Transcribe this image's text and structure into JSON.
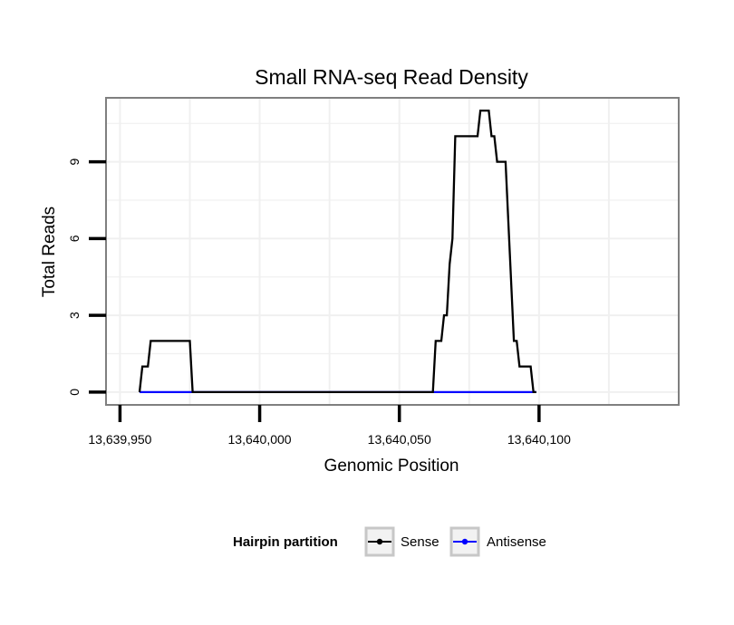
{
  "chart_data": {
    "type": "line",
    "title": "Small RNA-seq Read Density",
    "xlabel": "Genomic Position",
    "ylabel": "Total Reads",
    "xlim": [
      13639945,
      13640150
    ],
    "ylim": [
      -0.5,
      11.5
    ],
    "x_ticks": [
      13639950,
      13640000,
      13640050,
      13640100
    ],
    "x_tick_labels": [
      "13,639,950",
      "13,640,000",
      "13,640,050",
      "13,640,100"
    ],
    "y_ticks": [
      0,
      3,
      6,
      9
    ],
    "y_tick_labels": [
      "0",
      "3",
      "6",
      "9"
    ],
    "grid": true,
    "legend": {
      "title": "Hairpin partition",
      "position": "bottom",
      "entries": [
        {
          "name": "Sense",
          "color": "#000000"
        },
        {
          "name": "Antisense",
          "color": "#0000ff"
        }
      ]
    },
    "series": [
      {
        "name": "Sense",
        "color": "#000000",
        "x": [
          13639957,
          13639958,
          13639959,
          13639960,
          13639961,
          13639962,
          13639963,
          13639975,
          13639976,
          13639977,
          13640062,
          13640063,
          13640064,
          13640065,
          13640066,
          13640067,
          13640068,
          13640069,
          13640070,
          13640071,
          13640078,
          13640079,
          13640080,
          13640081,
          13640082,
          13640083,
          13640084,
          13640085,
          13640087,
          13640088,
          13640091,
          13640092,
          13640093,
          13640094,
          13640097,
          13640098,
          13640099
        ],
        "y": [
          0,
          1,
          1,
          1,
          2,
          2,
          2,
          2,
          0,
          0,
          0,
          2,
          2,
          2,
          3,
          3,
          5,
          6,
          10,
          10,
          10,
          11,
          11,
          11,
          11,
          10,
          10,
          9,
          9,
          9,
          2,
          2,
          1,
          1,
          1,
          0,
          0
        ]
      },
      {
        "name": "Antisense",
        "color": "#0000ff",
        "x": [
          13639957,
          13640099
        ],
        "y": [
          0,
          0
        ]
      }
    ]
  }
}
